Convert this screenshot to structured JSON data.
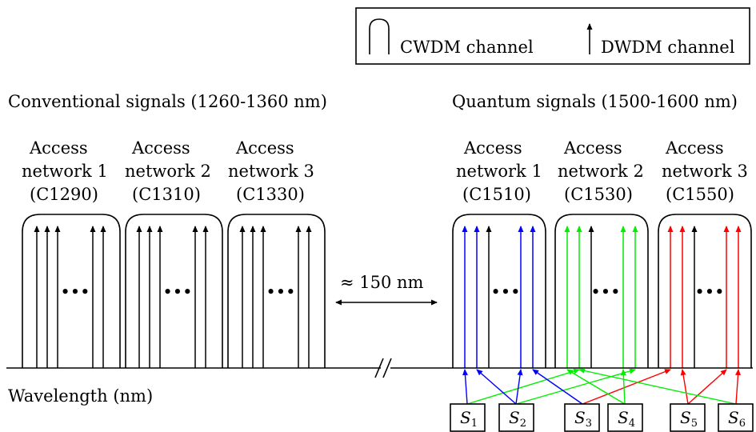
{
  "legend": {
    "cwdm_label": "CWDM channel",
    "dwdm_label": "DWDM channel"
  },
  "groups": {
    "conventional_title": "Conventional signals (1260-1360 nm)",
    "quantum_title": "Quantum signals (1500-1600 nm)"
  },
  "conventional_networks": [
    {
      "line1": "Access",
      "line2": "network 1",
      "line3": "(C1290)"
    },
    {
      "line1": "Access",
      "line2": "network 2",
      "line3": "(C1310)"
    },
    {
      "line1": "Access",
      "line2": "network 3",
      "line3": "(C1330)"
    }
  ],
  "quantum_networks": [
    {
      "line1": "Access",
      "line2": "network 1",
      "line3": "(C1510)"
    },
    {
      "line1": "Access",
      "line2": "network 2",
      "line3": "(C1530)"
    },
    {
      "line1": "Access",
      "line2": "network 3",
      "line3": "(C1550)"
    }
  ],
  "gap_label": "≈ 150 nm",
  "axis_label": "Wavelength (nm)",
  "ellipsis": "•••",
  "sources": [
    {
      "name": "S",
      "sub": "1"
    },
    {
      "name": "S",
      "sub": "2"
    },
    {
      "name": "S",
      "sub": "3"
    },
    {
      "name": "S",
      "sub": "4"
    },
    {
      "name": "S",
      "sub": "5"
    },
    {
      "name": "S",
      "sub": "6"
    }
  ],
  "colors": {
    "network1": "#0000ff",
    "network2": "#00ee00",
    "network3": "#ff0000",
    "classical": "#000000"
  }
}
